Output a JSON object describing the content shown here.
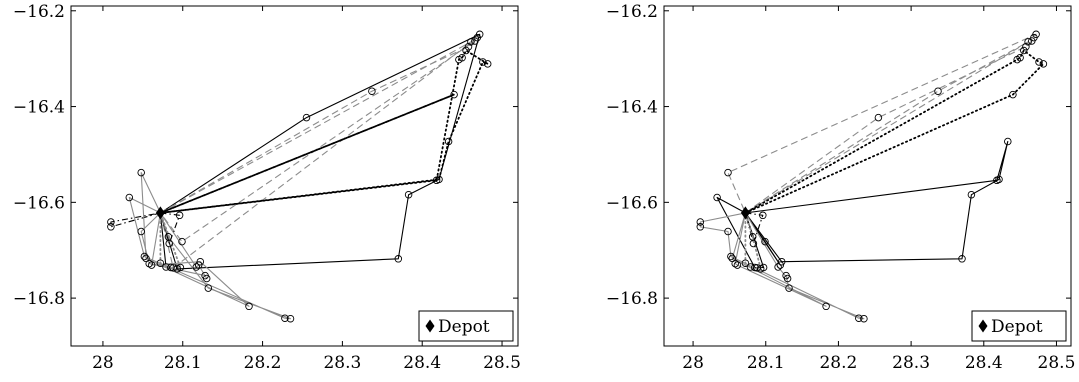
{
  "chart_data": [
    {
      "type": "scatter",
      "title": "",
      "xlabel": "",
      "ylabel": "",
      "xlim": [
        27.96,
        28.52
      ],
      "ylim": [
        -16.9,
        -16.19
      ],
      "xticks": [
        "28",
        "28.1",
        "28.2",
        "28.3",
        "28.4",
        "28.5"
      ],
      "yticks": [
        "−16.2",
        "−16.4",
        "−16.6",
        "−16.8"
      ],
      "grid": false,
      "legend": {
        "position": "bottom-right",
        "entries": [
          "Depot"
        ]
      },
      "depot": [
        28.072,
        -16.622
      ],
      "nodes": [
        [
          28.01,
          -16.641
        ],
        [
          28.01,
          -16.651
        ],
        [
          28.033,
          -16.59
        ],
        [
          28.048,
          -16.538
        ],
        [
          28.048,
          -16.661
        ],
        [
          28.052,
          -16.713
        ],
        [
          28.054,
          -16.717
        ],
        [
          28.058,
          -16.728
        ],
        [
          28.061,
          -16.731
        ],
        [
          28.072,
          -16.727
        ],
        [
          28.079,
          -16.735
        ],
        [
          28.085,
          -16.736
        ],
        [
          28.088,
          -16.737
        ],
        [
          28.093,
          -16.739
        ],
        [
          28.097,
          -16.736
        ],
        [
          28.082,
          -16.672
        ],
        [
          28.083,
          -16.686
        ],
        [
          28.096,
          -16.627
        ],
        [
          28.099,
          -16.682
        ],
        [
          28.117,
          -16.735
        ],
        [
          28.12,
          -16.731
        ],
        [
          28.122,
          -16.724
        ],
        [
          28.128,
          -16.753
        ],
        [
          28.13,
          -16.759
        ],
        [
          28.132,
          -16.779
        ],
        [
          28.183,
          -16.817
        ],
        [
          28.228,
          -16.842
        ],
        [
          28.235,
          -16.843
        ],
        [
          28.255,
          -16.423
        ],
        [
          28.337,
          -16.368
        ],
        [
          28.37,
          -16.718
        ],
        [
          28.383,
          -16.584
        ],
        [
          28.418,
          -16.554
        ],
        [
          28.421,
          -16.552
        ],
        [
          28.433,
          -16.473
        ],
        [
          28.44,
          -16.375
        ],
        [
          28.446,
          -16.302
        ],
        [
          28.45,
          -16.298
        ],
        [
          28.455,
          -16.283
        ],
        [
          28.458,
          -16.275
        ],
        [
          28.461,
          -16.265
        ],
        [
          28.466,
          -16.263
        ],
        [
          28.469,
          -16.256
        ],
        [
          28.472,
          -16.249
        ],
        [
          28.476,
          -16.307
        ],
        [
          28.482,
          -16.311
        ]
      ],
      "routes": [
        {
          "style": "solid-black",
          "points": [
            [
              28.072,
              -16.622
            ],
            [
              28.255,
              -16.423
            ],
            [
              28.472,
              -16.249
            ],
            [
              28.421,
              -16.552
            ],
            [
              28.383,
              -16.584
            ],
            [
              28.37,
              -16.718
            ],
            [
              28.093,
              -16.739
            ],
            [
              28.072,
              -16.622
            ]
          ]
        },
        {
          "style": "solid-black",
          "points": [
            [
              28.072,
              -16.622
            ],
            [
              28.079,
              -16.735
            ],
            [
              28.072,
              -16.622
            ]
          ]
        },
        {
          "style": "dashed-gray",
          "points": [
            [
              28.072,
              -16.622
            ],
            [
              28.337,
              -16.368
            ],
            [
              28.458,
              -16.275
            ],
            [
              28.466,
              -16.263
            ],
            [
              28.099,
              -16.682
            ],
            [
              28.072,
              -16.622
            ]
          ]
        },
        {
          "style": "dashed-gray",
          "points": [
            [
              28.072,
              -16.622
            ],
            [
              28.461,
              -16.265
            ],
            [
              28.469,
              -16.256
            ],
            [
              28.088,
              -16.737
            ],
            [
              28.072,
              -16.622
            ]
          ]
        },
        {
          "style": "dotted-black",
          "points": [
            [
              28.072,
              -16.622
            ],
            [
              28.44,
              -16.375
            ],
            [
              28.072,
              -16.622
            ]
          ]
        },
        {
          "style": "dotted-black",
          "points": [
            [
              28.072,
              -16.622
            ],
            [
              28.418,
              -16.554
            ],
            [
              28.446,
              -16.302
            ],
            [
              28.45,
              -16.298
            ],
            [
              28.455,
              -16.283
            ],
            [
              28.482,
              -16.311
            ],
            [
              28.476,
              -16.307
            ],
            [
              28.433,
              -16.473
            ],
            [
              28.421,
              -16.552
            ],
            [
              28.072,
              -16.622
            ]
          ]
        },
        {
          "style": "dashdot-black",
          "points": [
            [
              28.072,
              -16.622
            ],
            [
              28.01,
              -16.651
            ],
            [
              28.01,
              -16.641
            ],
            [
              28.072,
              -16.622
            ]
          ]
        },
        {
          "style": "dashdot-black",
          "points": [
            [
              28.072,
              -16.622
            ],
            [
              28.096,
              -16.627
            ],
            [
              28.083,
              -16.686
            ],
            [
              28.072,
              -16.622
            ]
          ]
        },
        {
          "style": "solid-gray",
          "points": [
            [
              28.072,
              -16.622
            ],
            [
              28.033,
              -16.59
            ],
            [
              28.052,
              -16.713
            ],
            [
              28.228,
              -16.842
            ],
            [
              28.235,
              -16.843
            ],
            [
              28.132,
              -16.779
            ],
            [
              28.082,
              -16.672
            ],
            [
              28.072,
              -16.622
            ]
          ]
        },
        {
          "style": "solid-gray",
          "points": [
            [
              28.072,
              -16.622
            ],
            [
              28.048,
              -16.538
            ],
            [
              28.054,
              -16.717
            ],
            [
              28.183,
              -16.817
            ],
            [
              28.122,
              -16.724
            ],
            [
              28.061,
              -16.731
            ],
            [
              28.072,
              -16.622
            ]
          ]
        },
        {
          "style": "solid-gray",
          "points": [
            [
              28.072,
              -16.622
            ],
            [
              28.048,
              -16.661
            ],
            [
              28.058,
              -16.728
            ],
            [
              28.128,
              -16.753
            ],
            [
              28.13,
              -16.759
            ],
            [
              28.12,
              -16.731
            ],
            [
              28.117,
              -16.735
            ],
            [
              28.072,
              -16.622
            ]
          ]
        },
        {
          "style": "dotted-gray",
          "points": [
            [
              28.072,
              -16.622
            ],
            [
              28.072,
              -16.727
            ],
            [
              28.085,
              -16.736
            ],
            [
              28.097,
              -16.736
            ],
            [
              28.072,
              -16.622
            ]
          ]
        }
      ]
    },
    {
      "type": "scatter",
      "title": "",
      "xlabel": "",
      "ylabel": "",
      "xlim": [
        27.96,
        28.52
      ],
      "ylim": [
        -16.9,
        -16.19
      ],
      "xticks": [
        "28",
        "28.1",
        "28.2",
        "28.3",
        "28.4",
        "28.5"
      ],
      "yticks": [
        "−16.2",
        "−16.4",
        "−16.6",
        "−16.8"
      ],
      "grid": false,
      "legend": {
        "position": "bottom-right",
        "entries": [
          "Depot"
        ]
      },
      "depot": [
        28.072,
        -16.622
      ],
      "nodes": [
        [
          28.01,
          -16.641
        ],
        [
          28.01,
          -16.651
        ],
        [
          28.033,
          -16.59
        ],
        [
          28.048,
          -16.538
        ],
        [
          28.048,
          -16.661
        ],
        [
          28.052,
          -16.713
        ],
        [
          28.054,
          -16.717
        ],
        [
          28.058,
          -16.728
        ],
        [
          28.061,
          -16.731
        ],
        [
          28.072,
          -16.727
        ],
        [
          28.079,
          -16.735
        ],
        [
          28.085,
          -16.736
        ],
        [
          28.088,
          -16.737
        ],
        [
          28.093,
          -16.739
        ],
        [
          28.097,
          -16.736
        ],
        [
          28.082,
          -16.672
        ],
        [
          28.083,
          -16.686
        ],
        [
          28.096,
          -16.627
        ],
        [
          28.099,
          -16.682
        ],
        [
          28.117,
          -16.735
        ],
        [
          28.12,
          -16.731
        ],
        [
          28.122,
          -16.724
        ],
        [
          28.128,
          -16.753
        ],
        [
          28.13,
          -16.759
        ],
        [
          28.132,
          -16.779
        ],
        [
          28.183,
          -16.817
        ],
        [
          28.228,
          -16.842
        ],
        [
          28.235,
          -16.843
        ],
        [
          28.255,
          -16.423
        ],
        [
          28.337,
          -16.368
        ],
        [
          28.37,
          -16.718
        ],
        [
          28.383,
          -16.584
        ],
        [
          28.418,
          -16.554
        ],
        [
          28.421,
          -16.552
        ],
        [
          28.433,
          -16.473
        ],
        [
          28.44,
          -16.375
        ],
        [
          28.446,
          -16.302
        ],
        [
          28.45,
          -16.298
        ],
        [
          28.455,
          -16.283
        ],
        [
          28.458,
          -16.275
        ],
        [
          28.461,
          -16.265
        ],
        [
          28.466,
          -16.263
        ],
        [
          28.469,
          -16.256
        ],
        [
          28.472,
          -16.249
        ],
        [
          28.476,
          -16.307
        ],
        [
          28.482,
          -16.311
        ]
      ],
      "routes": [
        {
          "style": "solid-black",
          "points": [
            [
              28.072,
              -16.622
            ],
            [
              28.418,
              -16.554
            ],
            [
              28.433,
              -16.473
            ],
            [
              28.421,
              -16.552
            ],
            [
              28.383,
              -16.584
            ],
            [
              28.37,
              -16.718
            ],
            [
              28.122,
              -16.724
            ],
            [
              28.072,
              -16.622
            ]
          ]
        },
        {
          "style": "solid-black",
          "points": [
            [
              28.072,
              -16.622
            ],
            [
              28.033,
              -16.59
            ],
            [
              28.085,
              -16.736
            ],
            [
              28.097,
              -16.736
            ],
            [
              28.072,
              -16.622
            ]
          ]
        },
        {
          "style": "solid-black",
          "points": [
            [
              28.072,
              -16.622
            ],
            [
              28.099,
              -16.682
            ],
            [
              28.12,
              -16.731
            ],
            [
              28.072,
              -16.622
            ]
          ]
        },
        {
          "style": "dashed-gray",
          "points": [
            [
              28.072,
              -16.622
            ],
            [
              28.255,
              -16.423
            ],
            [
              28.458,
              -16.275
            ],
            [
              28.466,
              -16.263
            ],
            [
              28.469,
              -16.256
            ],
            [
              28.472,
              -16.249
            ],
            [
              28.048,
              -16.538
            ],
            [
              28.072,
              -16.622
            ]
          ]
        },
        {
          "style": "dashed-gray",
          "points": [
            [
              28.072,
              -16.622
            ],
            [
              28.337,
              -16.368
            ],
            [
              28.461,
              -16.265
            ],
            [
              28.072,
              -16.622
            ]
          ]
        },
        {
          "style": "dotted-black",
          "points": [
            [
              28.072,
              -16.622
            ],
            [
              28.44,
              -16.375
            ],
            [
              28.482,
              -16.311
            ],
            [
              28.476,
              -16.307
            ],
            [
              28.455,
              -16.283
            ],
            [
              28.45,
              -16.298
            ],
            [
              28.446,
              -16.302
            ],
            [
              28.072,
              -16.622
            ]
          ]
        },
        {
          "style": "dashdot-black",
          "points": [
            [
              28.072,
              -16.622
            ],
            [
              28.096,
              -16.627
            ],
            [
              28.083,
              -16.686
            ],
            [
              28.072,
              -16.622
            ]
          ]
        },
        {
          "style": "solid-gray",
          "points": [
            [
              28.072,
              -16.622
            ],
            [
              28.01,
              -16.641
            ],
            [
              28.01,
              -16.651
            ],
            [
              28.048,
              -16.661
            ],
            [
              28.052,
              -16.713
            ],
            [
              28.228,
              -16.842
            ],
            [
              28.235,
              -16.843
            ],
            [
              28.132,
              -16.779
            ],
            [
              28.128,
              -16.753
            ],
            [
              28.13,
              -16.759
            ],
            [
              28.117,
              -16.735
            ],
            [
              28.072,
              -16.622
            ]
          ]
        },
        {
          "style": "solid-gray",
          "points": [
            [
              28.072,
              -16.622
            ],
            [
              28.054,
              -16.717
            ],
            [
              28.183,
              -16.817
            ],
            [
              28.061,
              -16.731
            ],
            [
              28.058,
              -16.728
            ],
            [
              28.072,
              -16.622
            ]
          ]
        },
        {
          "style": "dotted-gray",
          "points": [
            [
              28.072,
              -16.622
            ],
            [
              28.072,
              -16.727
            ],
            [
              28.079,
              -16.735
            ],
            [
              28.088,
              -16.737
            ],
            [
              28.093,
              -16.739
            ],
            [
              28.082,
              -16.672
            ],
            [
              28.072,
              -16.622
            ]
          ]
        }
      ]
    }
  ]
}
